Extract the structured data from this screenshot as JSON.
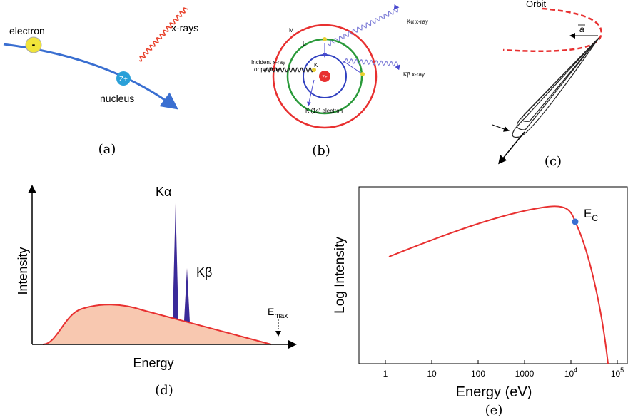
{
  "panel_a": {
    "caption": "(a)",
    "electron": "electron",
    "electron_charge": "-",
    "x_rays": "x-rays",
    "nucleus_charge": "Z+",
    "nucleus": "nucleus"
  },
  "panel_b": {
    "caption": "(b)",
    "shell_m": "M",
    "shell_l": "L",
    "shell_k": "K",
    "nucleus_charge": "Z+",
    "incident_line1": "Incident x-ray",
    "incident_line2": "or particle",
    "k_alpha": "Kα x-ray",
    "k_beta": "Kβ x-ray",
    "k_electron": "K (1s) electron"
  },
  "panel_c": {
    "caption": "(c)",
    "orbit": "Orbit",
    "acceleration": "a"
  },
  "panel_d": {
    "caption": "(d)",
    "y_label": "Intensity",
    "x_label": "Energy",
    "k_alpha": "Kα",
    "k_beta": "Kβ",
    "e_max": {
      "symbol": "E",
      "sub": "max"
    }
  },
  "panel_e": {
    "caption": "(e)",
    "y_label": "Log Intensity",
    "x_label": "Energy (eV)",
    "critical": {
      "symbol": "E",
      "sub": "C"
    },
    "log_x": true,
    "xticks": [
      1,
      10,
      100,
      1000,
      {
        "value": 10000,
        "label": "10",
        "sup": "4"
      },
      {
        "value": 100000,
        "label": "10",
        "sup": "5"
      }
    ]
  }
}
